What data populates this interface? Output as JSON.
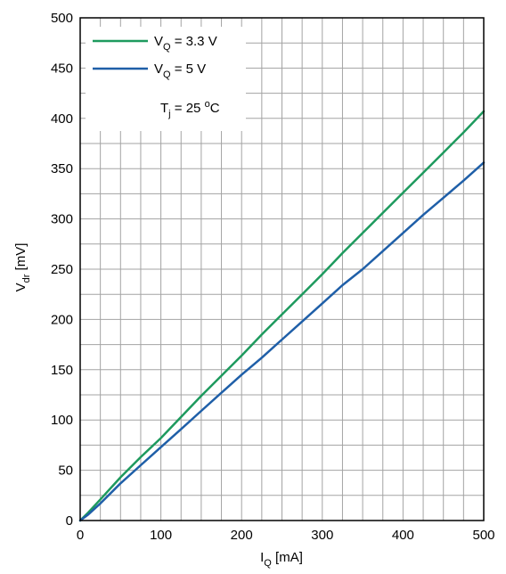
{
  "chart_data": {
    "type": "line",
    "xlabel": {
      "main": "I",
      "sub": "Q",
      "unit": " [mA]"
    },
    "ylabel": {
      "main": "V",
      "sub": "dr",
      "unit": " [mV]"
    },
    "xlim": [
      0,
      500
    ],
    "ylim": [
      0,
      500
    ],
    "x_ticks": [
      "0",
      "100",
      "200",
      "300",
      "400",
      "500"
    ],
    "y_ticks": [
      "0",
      "50",
      "100",
      "150",
      "200",
      "250",
      "300",
      "350",
      "400",
      "450",
      "500"
    ],
    "grid": true,
    "minor_grid_step_x": 25,
    "minor_grid_step_y": 25,
    "legend_position": "top-left",
    "annotation": {
      "main": "T",
      "sub": "j",
      "mid": " = 25 ",
      "sup": "o",
      "end": "C"
    },
    "series": [
      {
        "name": "V_Q = 3.3 V",
        "legend": {
          "main": "V",
          "sub": "Q",
          "rest": " = 3.3 V"
        },
        "color": "#1e9a5e",
        "x": [
          0,
          10,
          25,
          50,
          75,
          100,
          125,
          150,
          175,
          200,
          225,
          250,
          275,
          300,
          325,
          350,
          375,
          400,
          425,
          450,
          475,
          500
        ],
        "y": [
          0,
          8,
          21,
          43,
          63,
          82,
          103,
          124,
          144,
          164,
          185,
          205,
          225,
          245,
          266,
          286,
          306,
          326,
          346,
          366,
          386,
          407
        ]
      },
      {
        "name": "V_Q = 5 V",
        "legend": {
          "main": "V",
          "sub": "Q",
          "rest": " = 5 V"
        },
        "color": "#1f5fa8",
        "x": [
          0,
          10,
          25,
          50,
          75,
          100,
          125,
          150,
          175,
          200,
          225,
          250,
          275,
          300,
          325,
          350,
          375,
          400,
          425,
          450,
          475,
          500
        ],
        "y": [
          0,
          6,
          17,
          37,
          55,
          73,
          91,
          109,
          127,
          145,
          162,
          180,
          198,
          216,
          234,
          250,
          268,
          286,
          304,
          321,
          338,
          356
        ]
      }
    ]
  }
}
